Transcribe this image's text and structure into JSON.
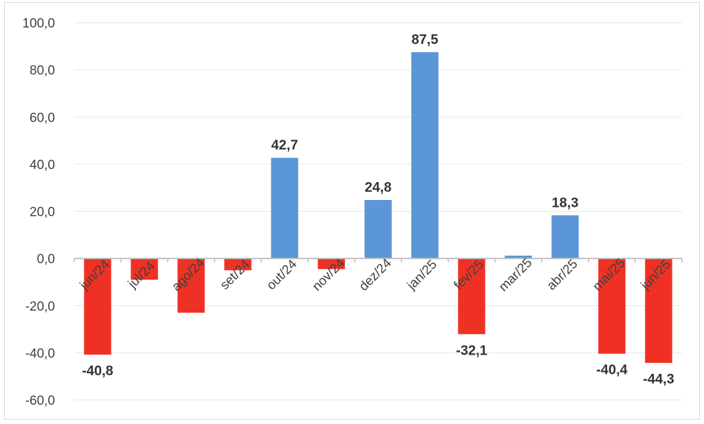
{
  "chart_data": {
    "type": "bar",
    "categories": [
      "jun/24",
      "jul/24",
      "ago/24",
      "set/24",
      "out/24",
      "nov/24",
      "dez/24",
      "jan/25",
      "fev/25",
      "mar/25",
      "abr/25",
      "mai/25",
      "jun/25"
    ],
    "values": [
      -40.8,
      -9.0,
      -23.0,
      -5.0,
      42.7,
      -4.5,
      24.8,
      87.5,
      -32.1,
      1.2,
      18.3,
      -40.4,
      -44.3
    ],
    "data_labels": [
      "-40,8",
      "",
      "",
      "",
      "42,7",
      "",
      "24,8",
      "87,5",
      "-32,1",
      "",
      "18,3",
      "-40,4",
      "-44,3"
    ],
    "yticks": [
      "100,0",
      "80,0",
      "60,0",
      "40,0",
      "20,0",
      "0,0",
      "-20,0",
      "-40,0",
      "-60,0"
    ],
    "ylim": [
      -60,
      100
    ],
    "positive_color": "#5B96D6",
    "negative_color": "#EE3124",
    "grid": true,
    "legend": "none"
  }
}
